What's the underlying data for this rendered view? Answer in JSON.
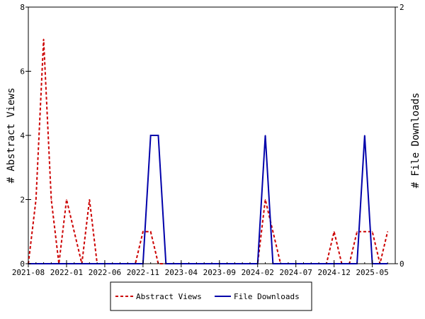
{
  "chart_data": {
    "type": "line",
    "title": "",
    "xlabel": "",
    "ylabel": "# Abstract Views",
    "y2label": "# File Downloads",
    "ylim": [
      0,
      8
    ],
    "y2lim": [
      0,
      2
    ],
    "yticks": [
      "0",
      "2",
      "4",
      "6",
      "8"
    ],
    "y2ticks": [
      "0",
      "2"
    ],
    "xlim": [
      "2021-08",
      "2025-08"
    ],
    "xticks": [
      "2021-08",
      "2022-01",
      "2022-06",
      "2022-11",
      "2023-04",
      "2023-09",
      "2024-02",
      "2024-07",
      "2024-12",
      "2025-05"
    ],
    "legend_position": "bottom",
    "series": [
      {
        "name": "Abstract Views",
        "color": "#cc0000",
        "style": "dashed",
        "axis": "left",
        "x": [
          "2021-08",
          "2021-09",
          "2021-10",
          "2021-11",
          "2021-12",
          "2022-01",
          "2022-02",
          "2022-03",
          "2022-04",
          "2022-05",
          "2022-06",
          "2022-07",
          "2022-08",
          "2022-09",
          "2022-10",
          "2022-11",
          "2022-12",
          "2023-01",
          "2023-02",
          "2023-03",
          "2023-04",
          "2023-05",
          "2023-06",
          "2023-07",
          "2023-08",
          "2023-09",
          "2023-10",
          "2023-11",
          "2023-12",
          "2024-01",
          "2024-02",
          "2024-03",
          "2024-04",
          "2024-05",
          "2024-06",
          "2024-07",
          "2024-08",
          "2024-09",
          "2024-10",
          "2024-11",
          "2024-12",
          "2025-01",
          "2025-02",
          "2025-03",
          "2025-04",
          "2025-05",
          "2025-06",
          "2025-07"
        ],
        "values": [
          0,
          2,
          7,
          2,
          0,
          2,
          1,
          0,
          2,
          0,
          0,
          0,
          0,
          0,
          0,
          1,
          1,
          0,
          0,
          0,
          0,
          0,
          0,
          0,
          0,
          0,
          0,
          0,
          0,
          0,
          0,
          2,
          1,
          0,
          0,
          0,
          0,
          0,
          0,
          0,
          1,
          0,
          0,
          1,
          1,
          1,
          0,
          1
        ]
      },
      {
        "name": "File Downloads",
        "color": "#0000aa",
        "style": "solid",
        "axis": "right",
        "x": [
          "2021-08",
          "2021-09",
          "2021-10",
          "2021-11",
          "2021-12",
          "2022-01",
          "2022-02",
          "2022-03",
          "2022-04",
          "2022-05",
          "2022-06",
          "2022-07",
          "2022-08",
          "2022-09",
          "2022-10",
          "2022-11",
          "2022-12",
          "2023-01",
          "2023-02",
          "2023-03",
          "2023-04",
          "2023-05",
          "2023-06",
          "2023-07",
          "2023-08",
          "2023-09",
          "2023-10",
          "2023-11",
          "2023-12",
          "2024-01",
          "2024-02",
          "2024-03",
          "2024-04",
          "2024-05",
          "2024-06",
          "2024-07",
          "2024-08",
          "2024-09",
          "2024-10",
          "2024-11",
          "2024-12",
          "2025-01",
          "2025-02",
          "2025-03",
          "2025-04",
          "2025-05",
          "2025-06",
          "2025-07"
        ],
        "values": [
          0,
          0,
          0,
          0,
          0,
          0,
          0,
          0,
          0,
          0,
          0,
          0,
          0,
          0,
          0,
          0,
          1,
          1,
          0,
          0,
          0,
          0,
          0,
          0,
          0,
          0,
          0,
          0,
          0,
          0,
          0,
          1,
          0,
          0,
          0,
          0,
          0,
          0,
          0,
          0,
          0,
          0,
          0,
          0,
          1,
          0,
          0,
          0
        ]
      }
    ]
  }
}
